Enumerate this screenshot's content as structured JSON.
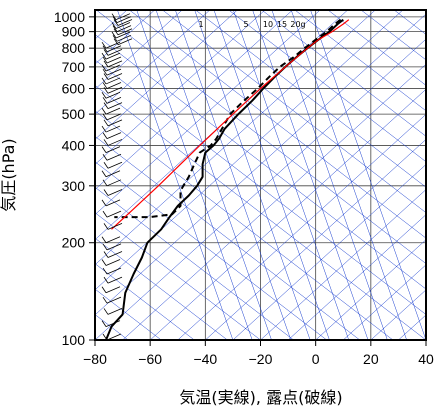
{
  "chart_data": {
    "type": "line",
    "xlabel": "気温(実線), 露点(破線)",
    "ylabel": "気圧(hPa)",
    "xlim": [
      -80,
      40
    ],
    "ylim": [
      1050,
      100
    ],
    "y_scale": "log",
    "x_ticks": [
      "−80",
      "−60",
      "−40",
      "−20",
      "0",
      "20",
      "40"
    ],
    "y_ticks": [
      "100",
      "200",
      "300",
      "400",
      "500",
      "600",
      "700",
      "800",
      "900",
      "1000"
    ],
    "mixing_ratio_labels": [
      "1",
      "5",
      "10",
      "15",
      "20g"
    ],
    "colors": {
      "isotherm": "#1a3fd0",
      "parcel": "#ff0000",
      "profile": "#000000",
      "grid": "#444444"
    },
    "series": [
      {
        "name": "気温",
        "style": "solid",
        "points": [
          [
            10,
            980
          ],
          [
            8,
            950
          ],
          [
            5,
            900
          ],
          [
            1,
            850
          ],
          [
            -3,
            800
          ],
          [
            -7,
            750
          ],
          [
            -11,
            700
          ],
          [
            -15,
            650
          ],
          [
            -19,
            600
          ],
          [
            -23,
            550
          ],
          [
            -28,
            500
          ],
          [
            -33,
            450
          ],
          [
            -35,
            420
          ],
          [
            -37,
            400
          ],
          [
            -40,
            380
          ],
          [
            -41,
            350
          ],
          [
            -41,
            320
          ],
          [
            -43,
            300
          ],
          [
            -46,
            280
          ],
          [
            -50,
            260
          ],
          [
            -53,
            240
          ],
          [
            -56,
            220
          ],
          [
            -61,
            200
          ],
          [
            -63,
            180
          ],
          [
            -66,
            160
          ],
          [
            -69,
            140
          ],
          [
            -70,
            120
          ],
          [
            -74,
            110
          ],
          [
            -76,
            100
          ]
        ]
      },
      {
        "name": "露点",
        "style": "dashed",
        "points": [
          [
            9,
            980
          ],
          [
            7,
            950
          ],
          [
            4,
            900
          ],
          [
            0,
            850
          ],
          [
            -4,
            800
          ],
          [
            -8,
            750
          ],
          [
            -13,
            700
          ],
          [
            -17,
            650
          ],
          [
            -21,
            600
          ],
          [
            -26,
            550
          ],
          [
            -31,
            500
          ],
          [
            -34,
            450
          ],
          [
            -36,
            420
          ],
          [
            -38,
            400
          ],
          [
            -42,
            380
          ],
          [
            -44,
            350
          ],
          [
            -46,
            320
          ],
          [
            -49,
            290
          ],
          [
            -49,
            260
          ],
          [
            -52,
            245
          ],
          [
            -60,
            240
          ],
          [
            -68,
            240
          ],
          [
            -73,
            240
          ]
        ]
      },
      {
        "name": "parcel",
        "style": "solid",
        "points": [
          [
            12,
            980
          ],
          [
            10,
            950
          ],
          [
            6,
            900
          ],
          [
            1,
            850
          ],
          [
            -3,
            800
          ],
          [
            -11,
            700
          ],
          [
            -20,
            600
          ],
          [
            -30,
            500
          ],
          [
            -42,
            400
          ],
          [
            -57,
            300
          ],
          [
            -67,
            250
          ],
          [
            -74,
            220
          ]
        ]
      }
    ],
    "wind_barbs_pressure": [
      980,
      960,
      940,
      920,
      900,
      880,
      860,
      840,
      820,
      800,
      780,
      760,
      740,
      720,
      700,
      680,
      660,
      640,
      620,
      600,
      580,
      560,
      540,
      520,
      500,
      480,
      460,
      440,
      420,
      400,
      380,
      360,
      340,
      320,
      300,
      280,
      260,
      240,
      220,
      200,
      190,
      180,
      170,
      160,
      150,
      140,
      130,
      120,
      110,
      100
    ]
  }
}
